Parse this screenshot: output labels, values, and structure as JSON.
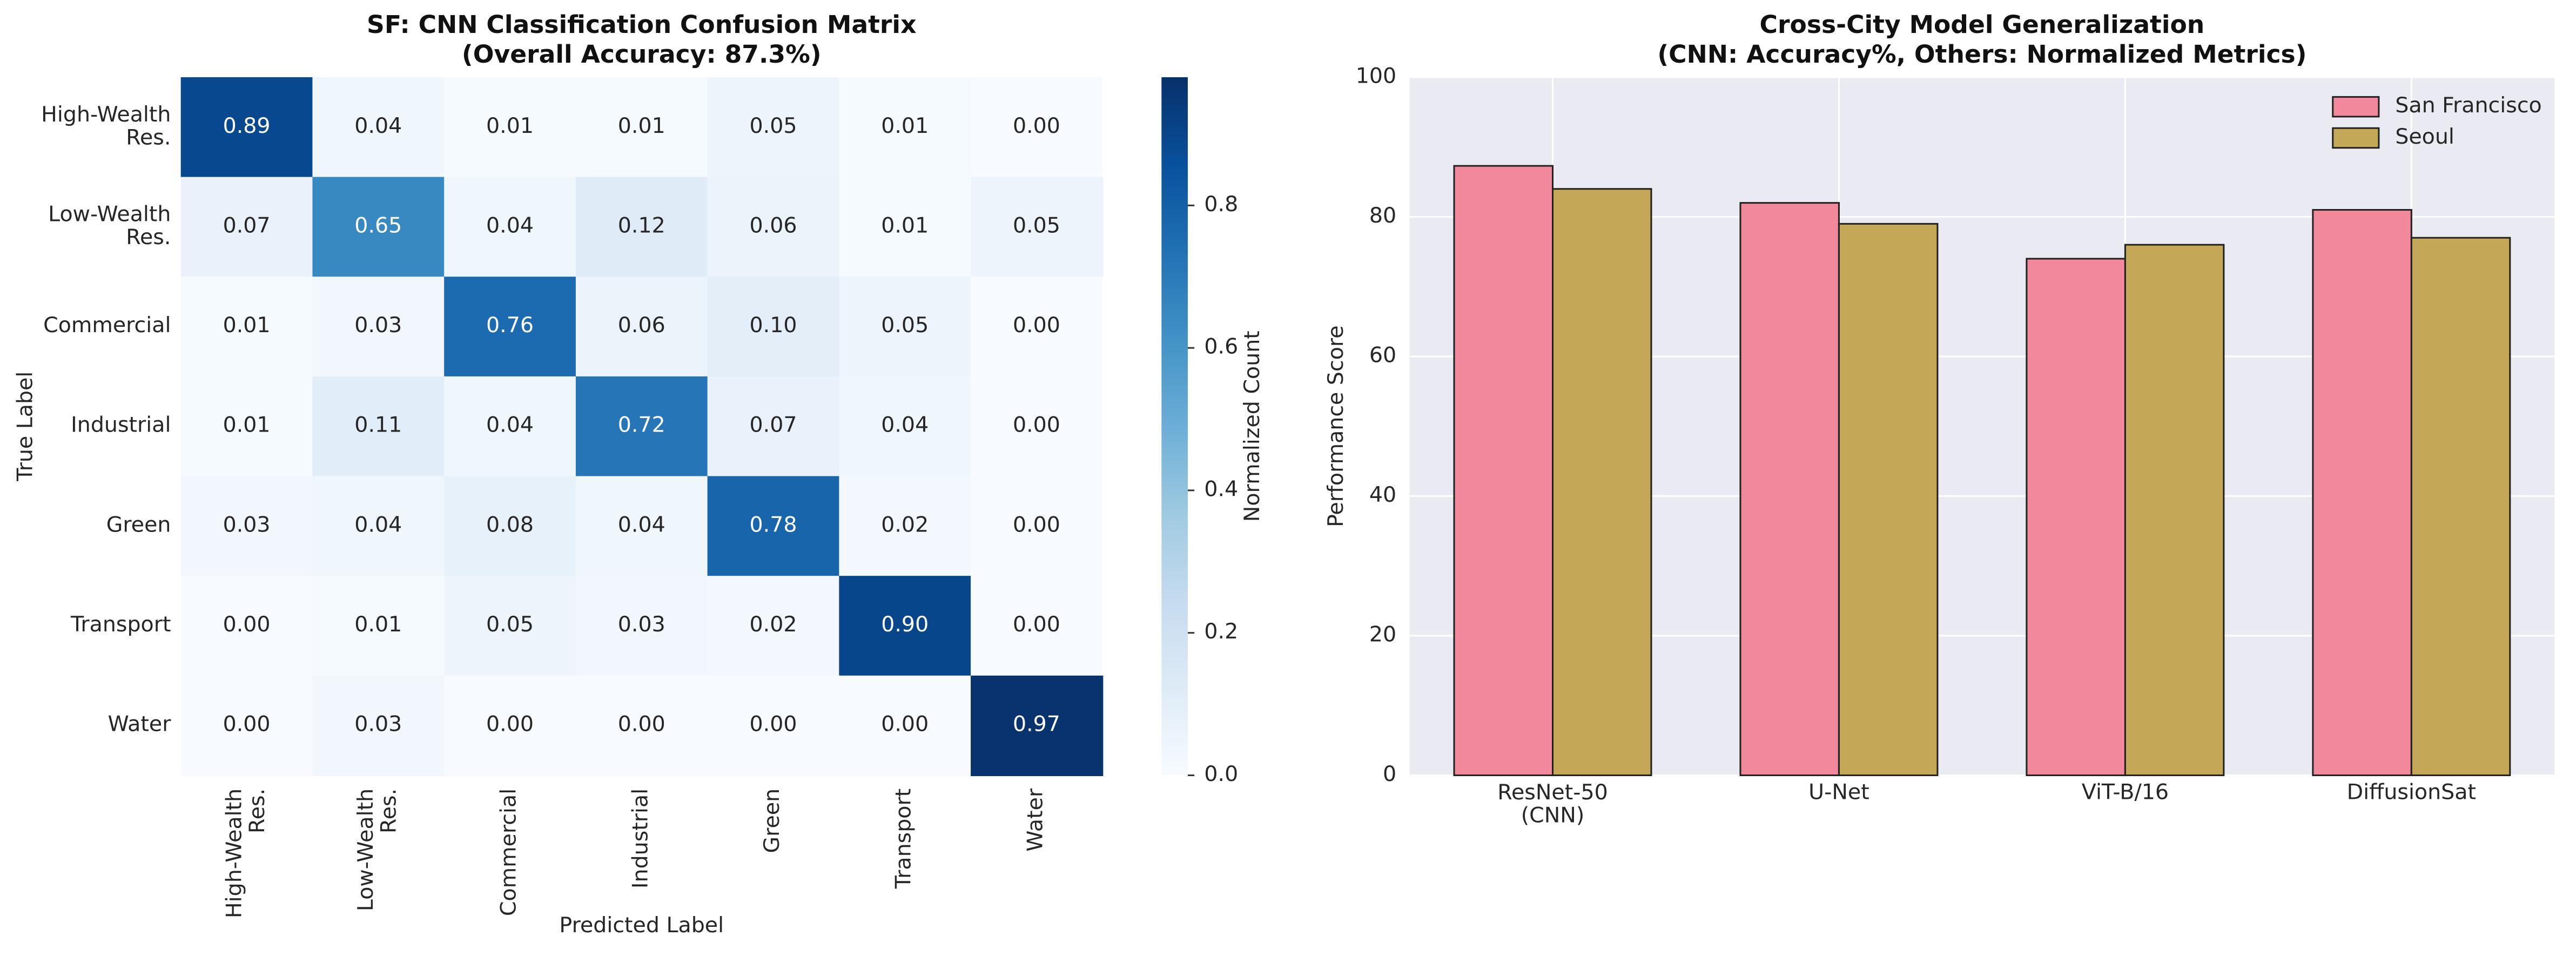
{
  "chart_data": [
    {
      "type": "heatmap",
      "title": "SF: CNN Classification Confusion Matrix",
      "subtitle": "(Overall Accuracy: 87.3%)",
      "x_label": "Predicted Label",
      "y_label": "True Label",
      "colorbar_label": "Normalized Count",
      "categories": [
        "High-Wealth\nRes.",
        "Low-Wealth\nRes.",
        "Commercial",
        "Industrial",
        "Green",
        "Transport",
        "Water"
      ],
      "values": [
        [
          0.89,
          0.04,
          0.01,
          0.01,
          0.05,
          0.01,
          0.0
        ],
        [
          0.07,
          0.65,
          0.04,
          0.12,
          0.06,
          0.01,
          0.05
        ],
        [
          0.01,
          0.03,
          0.76,
          0.06,
          0.1,
          0.05,
          0.0
        ],
        [
          0.01,
          0.11,
          0.04,
          0.72,
          0.07,
          0.04,
          0.0
        ],
        [
          0.03,
          0.04,
          0.08,
          0.04,
          0.78,
          0.02,
          0.0
        ],
        [
          0.0,
          0.01,
          0.05,
          0.03,
          0.02,
          0.9,
          0.0
        ],
        [
          0.0,
          0.03,
          0.0,
          0.0,
          0.0,
          0.0,
          0.97
        ]
      ],
      "value_labels": [
        [
          "0.89",
          "0.04",
          "0.01",
          "0.01",
          "0.05",
          "0.01",
          "0.00"
        ],
        [
          "0.07",
          "0.65",
          "0.04",
          "0.12",
          "0.06",
          "0.01",
          "0.05"
        ],
        [
          "0.01",
          "0.03",
          "0.76",
          "0.06",
          "0.10",
          "0.05",
          "0.00"
        ],
        [
          "0.01",
          "0.11",
          "0.04",
          "0.72",
          "0.07",
          "0.04",
          "0.00"
        ],
        [
          "0.03",
          "0.04",
          "0.08",
          "0.04",
          "0.78",
          "0.02",
          "0.00"
        ],
        [
          "0.00",
          "0.01",
          "0.05",
          "0.03",
          "0.02",
          "0.90",
          "0.00"
        ],
        [
          "0.00",
          "0.03",
          "0.00",
          "0.00",
          "0.00",
          "0.00",
          "0.97"
        ]
      ],
      "colormap": "Blues",
      "clim": [
        0,
        0.98
      ],
      "cticks": [
        {
          "value": 0,
          "label": "0.0"
        },
        0.2,
        0.4,
        0.6,
        0.8
      ]
    },
    {
      "type": "bar",
      "title": "Cross-City Model Generalization",
      "subtitle": "(CNN: Accuracy%, Others: Normalized Metrics)",
      "y_label": "Performance Score",
      "categories": [
        "ResNet-50\n(CNN)",
        "U-Net",
        "ViT-B/16",
        "DiffusionSat"
      ],
      "series": [
        {
          "name": "San Francisco",
          "color": "#f2889b",
          "values": [
            87.3,
            82,
            74,
            81
          ]
        },
        {
          "name": "Seoul",
          "color": "#c4a757",
          "values": [
            84,
            79,
            76,
            77
          ]
        }
      ],
      "ylim": [
        0,
        100
      ],
      "yticks": [
        0,
        20,
        40,
        60,
        80,
        100
      ],
      "grid": true,
      "legend": "upper right",
      "background": "#eaeaf2"
    }
  ]
}
